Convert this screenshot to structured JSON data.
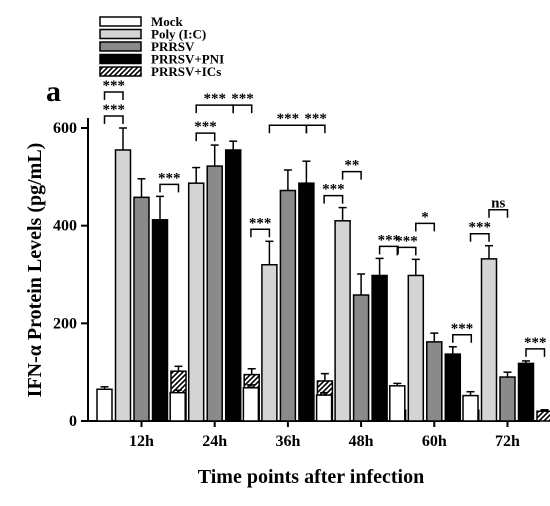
{
  "panel_label": "a",
  "colors": {
    "mock": "#ffffff",
    "poly": "#d4d4d4",
    "prrsv": "#8a8a8a",
    "pni": "#000000",
    "ics": "#ffffff",
    "stroke": "#000000"
  },
  "chart_data": {
    "type": "bar",
    "xlabel": "Time points after infection",
    "ylabel": "IFN-α Protein Levels (pg/mL)",
    "ylim": [
      0,
      600
    ],
    "yticks": [
      0,
      200,
      400,
      600
    ],
    "categories": [
      "12h",
      "24h",
      "36h",
      "48h",
      "60h",
      "72h"
    ],
    "legend_position": "top-left",
    "series": [
      {
        "name": "Mock",
        "fill": "white",
        "values": [
          65,
          58,
          68,
          53,
          72,
          52
        ],
        "errors": [
          5,
          5,
          6,
          5,
          5,
          8
        ]
      },
      {
        "name": "Poly (I:C)",
        "fill": "lightgray",
        "values": [
          555,
          487,
          320,
          410,
          298,
          332
        ],
        "errors": [
          45,
          32,
          48,
          27,
          33,
          27
        ]
      },
      {
        "name": "PRRSV",
        "fill": "gray",
        "values": [
          458,
          522,
          472,
          258,
          162,
          90
        ],
        "errors": [
          38,
          43,
          42,
          43,
          18,
          10
        ]
      },
      {
        "name": "PRRSV+PNI",
        "fill": "black",
        "values": [
          412,
          555,
          487,
          298,
          137,
          118
        ],
        "errors": [
          48,
          18,
          45,
          35,
          15,
          5
        ]
      },
      {
        "name": "PRRSV+ICs",
        "fill": "pattern",
        "values": [
          102,
          95,
          82,
          22,
          22,
          20
        ],
        "errors": [
          10,
          12,
          15,
          3,
          3,
          3
        ]
      }
    ],
    "annotations": [
      {
        "group": 0,
        "from": 0,
        "to": 1,
        "label": "***",
        "level": 0
      },
      {
        "group": 0,
        "from": 0,
        "to": 1,
        "label": "***",
        "level": 1
      },
      {
        "group": 0,
        "from": 3,
        "to": 4,
        "label": "***",
        "level": 0
      },
      {
        "group": 1,
        "from": 1,
        "to": 2,
        "label": "***",
        "level": 0
      },
      {
        "group": 1,
        "from": 1,
        "to": 3,
        "label": "***",
        "level": 1
      },
      {
        "group": 1,
        "from": 3,
        "to": 4,
        "label": "***",
        "level": 1
      },
      {
        "group": 2,
        "from": 0,
        "to": 1,
        "label": "***",
        "level": 0
      },
      {
        "group": 2,
        "from": 1,
        "to": 3,
        "label": "***",
        "level": 1
      },
      {
        "group": 2,
        "from": 3,
        "to": 4,
        "label": "***",
        "level": 1
      },
      {
        "group": 3,
        "from": 0,
        "to": 1,
        "label": "***",
        "level": 0
      },
      {
        "group": 3,
        "from": 1,
        "to": 2,
        "label": "**",
        "level": 1
      },
      {
        "group": 3,
        "from": 3,
        "to": 4,
        "label": "***",
        "level": 0
      },
      {
        "group": 4,
        "from": 0,
        "to": 1,
        "label": "***",
        "level": 0
      },
      {
        "group": 4,
        "from": 1,
        "to": 2,
        "label": "*",
        "level": 1
      },
      {
        "group": 4,
        "from": 3,
        "to": 4,
        "label": "***",
        "level": 0
      },
      {
        "group": 5,
        "from": 0,
        "to": 1,
        "label": "***",
        "level": 0
      },
      {
        "group": 5,
        "from": 1,
        "to": 2,
        "label": "ns",
        "level": 1
      },
      {
        "group": 5,
        "from": 3,
        "to": 4,
        "label": "***",
        "level": 0
      }
    ]
  }
}
